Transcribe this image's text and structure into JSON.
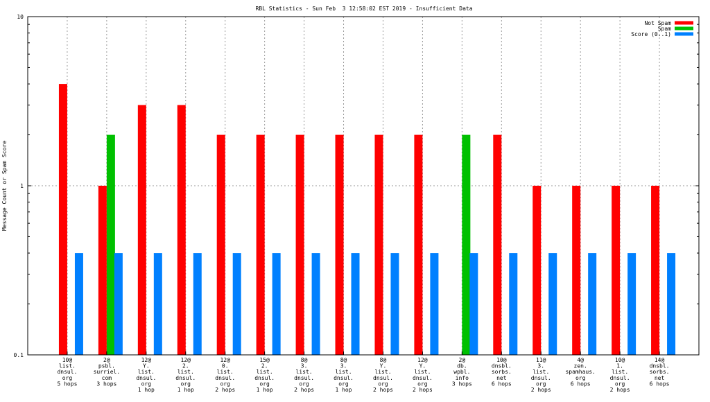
{
  "chart_data": {
    "type": "bar",
    "title": "RBL Statistics - Sun Feb  3 12:58:02 EST 2019 - Insufficient Data",
    "ylabel": "Message Count or Spam Score",
    "xlabel": "",
    "y_scale": "log",
    "ylim": [
      0.1,
      10
    ],
    "y_ticks": [
      "10",
      "1",
      "0.1"
    ],
    "grid": true,
    "legend_position": "top-right",
    "categories": [
      [
        "10@",
        "list.",
        "dnsul.",
        "org",
        "5 hops"
      ],
      [
        "2@",
        "psbl.",
        "surriel.",
        "com",
        "3 hops"
      ],
      [
        "12@",
        "Y.",
        "list.",
        "dnsul.",
        "org",
        "1 hop"
      ],
      [
        "12@",
        "2.",
        "list.",
        "dnsul.",
        "org",
        "1 hop"
      ],
      [
        "12@",
        "0.",
        "list.",
        "dnsul.",
        "org",
        "2 hops"
      ],
      [
        "15@",
        "2.",
        "list.",
        "dnsul.",
        "org",
        "1 hop"
      ],
      [
        "8@",
        "3.",
        "list.",
        "dnsul.",
        "org",
        "2 hops"
      ],
      [
        "8@",
        "3.",
        "list.",
        "dnsul.",
        "org",
        "1 hop"
      ],
      [
        "8@",
        "Y.",
        "list.",
        "dnsul.",
        "org",
        "2 hops"
      ],
      [
        "12@",
        "Y.",
        "list.",
        "dnsul.",
        "org",
        "2 hops"
      ],
      [
        "2@",
        "db.",
        "wpbl.",
        "info",
        "3 hops"
      ],
      [
        "10@",
        "dnsbl.",
        "sorbs.",
        "net",
        "6 hops"
      ],
      [
        "11@",
        "3.",
        "list.",
        "dnsul.",
        "org",
        "2 hops"
      ],
      [
        "4@",
        "zen.",
        "spamhaus.",
        "org",
        "6 hops"
      ],
      [
        "10@",
        "1.",
        "list.",
        "dnsul.",
        "org",
        "2 hops"
      ],
      [
        "14@",
        "dnsbl.",
        "sorbs.",
        "net",
        "6 hops"
      ]
    ],
    "series": [
      {
        "name": "Not Spam",
        "color": "#ff0000",
        "values": [
          4,
          1,
          3,
          3,
          2,
          2,
          2,
          2,
          2,
          2,
          null,
          2,
          1,
          1,
          1,
          1
        ]
      },
      {
        "name": "Spam",
        "color": "#00c000",
        "values": [
          null,
          2,
          null,
          null,
          null,
          null,
          null,
          null,
          null,
          null,
          2,
          null,
          null,
          null,
          null,
          null
        ]
      },
      {
        "name": "Score (0..1)",
        "color": "#0080ff",
        "values": [
          0.4,
          0.4,
          0.4,
          0.4,
          0.4,
          0.4,
          0.4,
          0.4,
          0.4,
          0.4,
          0.4,
          0.4,
          0.4,
          0.4,
          0.4,
          0.4
        ]
      }
    ]
  }
}
